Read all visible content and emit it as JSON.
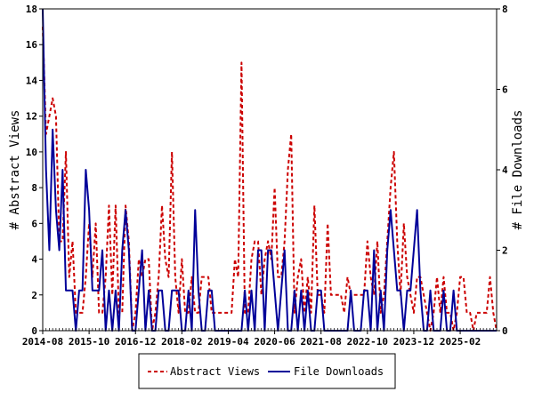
{
  "chart_data": {
    "type": "line",
    "title": "",
    "xlabel": "",
    "ylabel_left": "# Abstract Views",
    "ylabel_right": "# File Downloads",
    "x_tick_labels": [
      "2014-08",
      "2015-10",
      "2016-12",
      "2018-02",
      "2019-04",
      "2020-06",
      "2021-08",
      "2022-10",
      "2023-12",
      "2025-02"
    ],
    "ylim_left": [
      0,
      18
    ],
    "ylim_right": [
      0,
      8
    ],
    "y_ticks_left": [
      0,
      2,
      4,
      6,
      8,
      10,
      12,
      14,
      16,
      18
    ],
    "y_ticks_right": [
      0,
      2,
      4,
      6,
      8
    ],
    "x_range_months": [
      0,
      137
    ],
    "legend_position": "bottom-center",
    "colors": {
      "abstract_views": "#cc0000",
      "file_downloads": "#000099"
    },
    "series": [
      {
        "name": "Abstract Views",
        "axis": "left",
        "style": "dashed",
        "points": [
          [
            0,
            17
          ],
          [
            1,
            11
          ],
          [
            2,
            12
          ],
          [
            3,
            13
          ],
          [
            4,
            12
          ],
          [
            5,
            5
          ],
          [
            6,
            5
          ],
          [
            7,
            10
          ],
          [
            8,
            3
          ],
          [
            9,
            5
          ],
          [
            10,
            1
          ],
          [
            11,
            1
          ],
          [
            12,
            1
          ],
          [
            13,
            3
          ],
          [
            14,
            6
          ],
          [
            15,
            3
          ],
          [
            16,
            6
          ],
          [
            17,
            1
          ],
          [
            18,
            1
          ],
          [
            19,
            3
          ],
          [
            20,
            7
          ],
          [
            21,
            2
          ],
          [
            22,
            7
          ],
          [
            23,
            1
          ],
          [
            24,
            1
          ],
          [
            25,
            7
          ],
          [
            26,
            5
          ],
          [
            27,
            0
          ],
          [
            28,
            1
          ],
          [
            29,
            4
          ],
          [
            30,
            3
          ],
          [
            31,
            4
          ],
          [
            32,
            4
          ],
          [
            33,
            0
          ],
          [
            34,
            1
          ],
          [
            35,
            3
          ],
          [
            36,
            7
          ],
          [
            37,
            4
          ],
          [
            38,
            3
          ],
          [
            39,
            10
          ],
          [
            40,
            3
          ],
          [
            41,
            1
          ],
          [
            42,
            4
          ],
          [
            43,
            1
          ],
          [
            44,
            1
          ],
          [
            45,
            3
          ],
          [
            46,
            1
          ],
          [
            47,
            1
          ],
          [
            48,
            3
          ],
          [
            49,
            3
          ],
          [
            50,
            3
          ],
          [
            51,
            1
          ],
          [
            52,
            1
          ],
          [
            53,
            1
          ],
          [
            54,
            1
          ],
          [
            55,
            1
          ],
          [
            56,
            1
          ],
          [
            57,
            1
          ],
          [
            58,
            4
          ],
          [
            59,
            3
          ],
          [
            60,
            15
          ],
          [
            61,
            1
          ],
          [
            62,
            1
          ],
          [
            63,
            4
          ],
          [
            64,
            5
          ],
          [
            65,
            5
          ],
          [
            66,
            2
          ],
          [
            67,
            4
          ],
          [
            68,
            5
          ],
          [
            69,
            4
          ],
          [
            70,
            8
          ],
          [
            71,
            3
          ],
          [
            72,
            3
          ],
          [
            73,
            5
          ],
          [
            74,
            9
          ],
          [
            75,
            11
          ],
          [
            76,
            1
          ],
          [
            77,
            3
          ],
          [
            78,
            4
          ],
          [
            79,
            1
          ],
          [
            80,
            3
          ],
          [
            81,
            1
          ],
          [
            82,
            7
          ],
          [
            83,
            2
          ],
          [
            84,
            2
          ],
          [
            85,
            1
          ],
          [
            86,
            6
          ],
          [
            87,
            2
          ],
          [
            88,
            2
          ],
          [
            89,
            2
          ],
          [
            90,
            2
          ],
          [
            91,
            1
          ],
          [
            92,
            3
          ],
          [
            93,
            2
          ],
          [
            94,
            2
          ],
          [
            95,
            2
          ],
          [
            96,
            2
          ],
          [
            97,
            2
          ],
          [
            98,
            5
          ],
          [
            99,
            3
          ],
          [
            100,
            2
          ],
          [
            101,
            5
          ],
          [
            102,
            1
          ],
          [
            103,
            2
          ],
          [
            104,
            5
          ],
          [
            105,
            8
          ],
          [
            106,
            10
          ],
          [
            107,
            5
          ],
          [
            108,
            2
          ],
          [
            109,
            6
          ],
          [
            110,
            3
          ],
          [
            111,
            2
          ],
          [
            112,
            1
          ],
          [
            113,
            3
          ],
          [
            114,
            3
          ],
          [
            115,
            2
          ],
          [
            116,
            1
          ],
          [
            117,
            0
          ],
          [
            118,
            1
          ],
          [
            119,
            3
          ],
          [
            120,
            1
          ],
          [
            121,
            3
          ],
          [
            122,
            1
          ],
          [
            123,
            1
          ],
          [
            124,
            0
          ],
          [
            125,
            1
          ],
          [
            126,
            3
          ],
          [
            127,
            3
          ],
          [
            128,
            1
          ],
          [
            129,
            1
          ],
          [
            130,
            0
          ],
          [
            131,
            1
          ],
          [
            132,
            1
          ],
          [
            133,
            1
          ],
          [
            134,
            1
          ],
          [
            135,
            3
          ],
          [
            136,
            1
          ],
          [
            137,
            0
          ]
        ]
      },
      {
        "name": "File Downloads",
        "axis": "right",
        "style": "solid",
        "points": [
          [
            0,
            8
          ],
          [
            1,
            4
          ],
          [
            2,
            2
          ],
          [
            3,
            5
          ],
          [
            4,
            3
          ],
          [
            5,
            2
          ],
          [
            6,
            4
          ],
          [
            7,
            1
          ],
          [
            8,
            1
          ],
          [
            9,
            1
          ],
          [
            10,
            0
          ],
          [
            11,
            1
          ],
          [
            12,
            1
          ],
          [
            13,
            4
          ],
          [
            14,
            3
          ],
          [
            15,
            1
          ],
          [
            16,
            1
          ],
          [
            17,
            1
          ],
          [
            18,
            2
          ],
          [
            19,
            0
          ],
          [
            20,
            1
          ],
          [
            21,
            0
          ],
          [
            22,
            1
          ],
          [
            23,
            0
          ],
          [
            24,
            2
          ],
          [
            25,
            3
          ],
          [
            26,
            2
          ],
          [
            27,
            0
          ],
          [
            28,
            0
          ],
          [
            29,
            1
          ],
          [
            30,
            2
          ],
          [
            31,
            0
          ],
          [
            32,
            1
          ],
          [
            33,
            0
          ],
          [
            34,
            0
          ],
          [
            35,
            1
          ],
          [
            36,
            1
          ],
          [
            37,
            0
          ],
          [
            38,
            0
          ],
          [
            39,
            1
          ],
          [
            40,
            1
          ],
          [
            41,
            1
          ],
          [
            42,
            0
          ],
          [
            43,
            0
          ],
          [
            44,
            1
          ],
          [
            45,
            0
          ],
          [
            46,
            3
          ],
          [
            47,
            1
          ],
          [
            48,
            0
          ],
          [
            49,
            0
          ],
          [
            50,
            1
          ],
          [
            51,
            1
          ],
          [
            52,
            0
          ],
          [
            53,
            0
          ],
          [
            54,
            0
          ],
          [
            55,
            0
          ],
          [
            56,
            0
          ],
          [
            57,
            0
          ],
          [
            58,
            0
          ],
          [
            59,
            0
          ],
          [
            60,
            0
          ],
          [
            61,
            1
          ],
          [
            62,
            0
          ],
          [
            63,
            1
          ],
          [
            64,
            0
          ],
          [
            65,
            2
          ],
          [
            66,
            2
          ],
          [
            67,
            0
          ],
          [
            68,
            2
          ],
          [
            69,
            2
          ],
          [
            70,
            1
          ],
          [
            71,
            0
          ],
          [
            72,
            1
          ],
          [
            73,
            2
          ],
          [
            74,
            0
          ],
          [
            75,
            0
          ],
          [
            76,
            1
          ],
          [
            77,
            0
          ],
          [
            78,
            1
          ],
          [
            79,
            0
          ],
          [
            80,
            1
          ],
          [
            81,
            0
          ],
          [
            82,
            0
          ],
          [
            83,
            1
          ],
          [
            84,
            1
          ],
          [
            85,
            0
          ],
          [
            86,
            0
          ],
          [
            87,
            0
          ],
          [
            88,
            0
          ],
          [
            89,
            0
          ],
          [
            90,
            0
          ],
          [
            91,
            0
          ],
          [
            92,
            0
          ],
          [
            93,
            1
          ],
          [
            94,
            0
          ],
          [
            95,
            0
          ],
          [
            96,
            0
          ],
          [
            97,
            1
          ],
          [
            98,
            1
          ],
          [
            99,
            0
          ],
          [
            100,
            2
          ],
          [
            101,
            0
          ],
          [
            102,
            1
          ],
          [
            103,
            0
          ],
          [
            104,
            2
          ],
          [
            105,
            3
          ],
          [
            106,
            2
          ],
          [
            107,
            1
          ],
          [
            108,
            1
          ],
          [
            109,
            0
          ],
          [
            110,
            1
          ],
          [
            111,
            1
          ],
          [
            112,
            2
          ],
          [
            113,
            3
          ],
          [
            114,
            1
          ],
          [
            115,
            0
          ],
          [
            116,
            0
          ],
          [
            117,
            1
          ],
          [
            118,
            0
          ],
          [
            119,
            0
          ],
          [
            120,
            0
          ],
          [
            121,
            1
          ],
          [
            122,
            0
          ],
          [
            123,
            0
          ],
          [
            124,
            1
          ],
          [
            125,
            0
          ],
          [
            126,
            0
          ],
          [
            127,
            0
          ],
          [
            128,
            0
          ],
          [
            129,
            0
          ],
          [
            130,
            0
          ],
          [
            131,
            0
          ],
          [
            132,
            0
          ],
          [
            133,
            0
          ],
          [
            134,
            0
          ],
          [
            135,
            0
          ],
          [
            136,
            0
          ],
          [
            137,
            0
          ]
        ]
      }
    ]
  }
}
